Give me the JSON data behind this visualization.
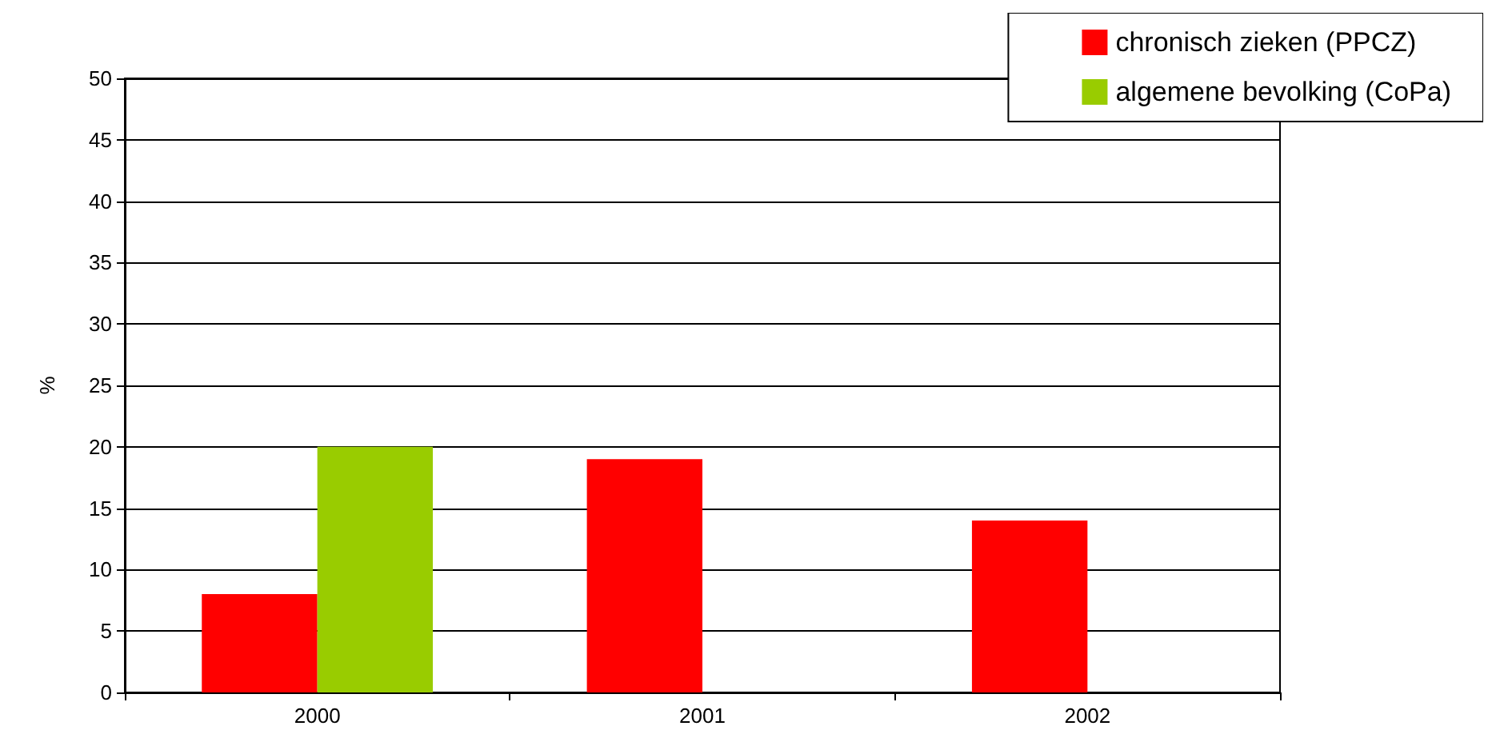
{
  "chart_data": {
    "type": "bar",
    "ylabel": "%",
    "categories": [
      "2000",
      "2001",
      "2002"
    ],
    "series": [
      {
        "name": "chronisch zieken (PPCZ)",
        "color": "#ff0000",
        "values": [
          8,
          19,
          14
        ]
      },
      {
        "name": "algemene bevolking (CoPa)",
        "color": "#99cc00",
        "values": [
          20,
          null,
          null
        ]
      }
    ],
    "ylim": [
      0,
      50
    ],
    "yticks": [
      0,
      5,
      10,
      15,
      20,
      25,
      30,
      35,
      40,
      45,
      50
    ],
    "grid": "y",
    "legend": "top right"
  }
}
